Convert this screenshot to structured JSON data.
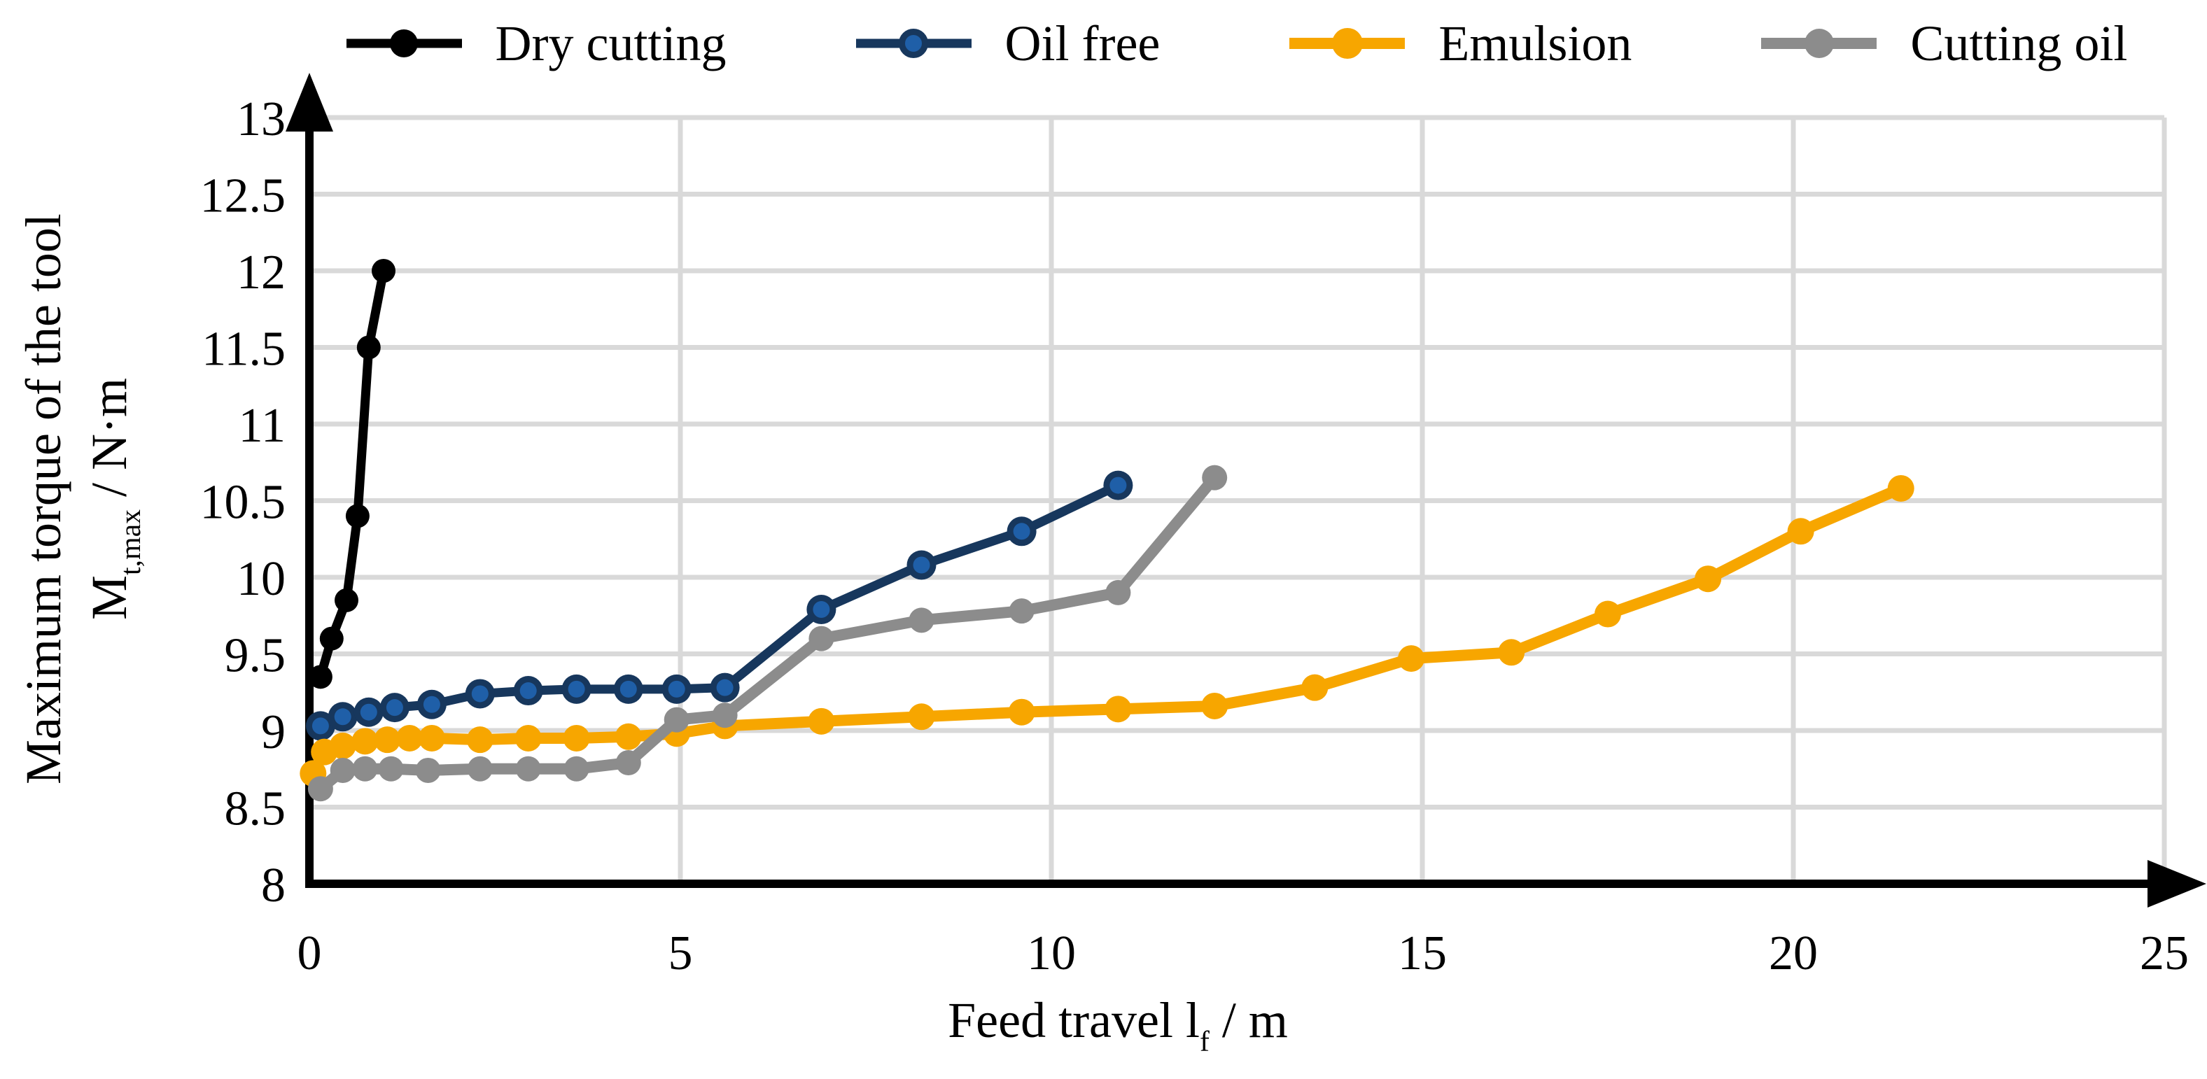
{
  "chart_data": {
    "type": "line",
    "title": "",
    "xlabel": {
      "pre": "Feed travel l",
      "sub": "f",
      "post": " / m"
    },
    "ylabel": {
      "line1": "Maximum torque of the tool",
      "m": "M",
      "sub": "t,max",
      "post": " / N·m"
    },
    "xlim": [
      0,
      25
    ],
    "ylim": [
      8,
      13
    ],
    "x_ticks": [
      "0",
      "5",
      "10",
      "15",
      "20",
      "25"
    ],
    "y_ticks": [
      "8",
      "8.5",
      "9",
      "9.5",
      "10",
      "10.5",
      "11",
      "11.5",
      "12",
      "12.5",
      "13"
    ],
    "grid": true,
    "legend_position": "top",
    "grid_color": "#D9D9D9",
    "axis_color": "#000000",
    "series": [
      {
        "name": "Dry cutting",
        "color": "#000000",
        "line_width": 13,
        "marker": {
          "type": "circle",
          "r": 17,
          "fill": "#000000"
        },
        "points": [
          [
            0.15,
            9.35
          ],
          [
            0.3,
            9.6
          ],
          [
            0.5,
            9.85
          ],
          [
            0.65,
            10.4
          ],
          [
            0.8,
            11.5
          ],
          [
            1.0,
            12.0
          ]
        ]
      },
      {
        "name": "Oil free",
        "color": "#17375D",
        "line_width": 13,
        "marker": {
          "type": "ring",
          "r": 21,
          "fill": "#17375D",
          "inner_r": 12,
          "inner_fill": "#1F5FA8"
        },
        "points": [
          [
            0.15,
            9.03
          ],
          [
            0.45,
            9.09
          ],
          [
            0.8,
            9.12
          ],
          [
            1.15,
            9.15
          ],
          [
            1.65,
            9.17
          ],
          [
            2.3,
            9.24
          ],
          [
            2.95,
            9.26
          ],
          [
            3.6,
            9.27
          ],
          [
            4.3,
            9.27
          ],
          [
            4.95,
            9.27
          ],
          [
            5.6,
            9.28
          ],
          [
            6.9,
            9.79
          ],
          [
            8.25,
            10.08
          ],
          [
            9.6,
            10.3
          ],
          [
            10.9,
            10.6
          ]
        ]
      },
      {
        "name": "Emulsion",
        "color": "#F7A600",
        "line_width": 16,
        "marker": {
          "type": "circle",
          "r": 19,
          "fill": "#F7A600"
        },
        "points": [
          [
            0.05,
            8.72
          ],
          [
            0.2,
            8.86
          ],
          [
            0.45,
            8.9
          ],
          [
            0.75,
            8.93
          ],
          [
            1.05,
            8.94
          ],
          [
            1.35,
            8.95
          ],
          [
            1.65,
            8.95
          ],
          [
            2.3,
            8.94
          ],
          [
            2.95,
            8.95
          ],
          [
            3.6,
            8.95
          ],
          [
            4.3,
            8.96
          ],
          [
            4.95,
            8.98
          ],
          [
            5.6,
            9.03
          ],
          [
            6.9,
            9.06
          ],
          [
            8.25,
            9.09
          ],
          [
            9.6,
            9.12
          ],
          [
            10.9,
            9.14
          ],
          [
            12.2,
            9.16
          ],
          [
            13.55,
            9.28
          ],
          [
            14.85,
            9.47
          ],
          [
            16.2,
            9.51
          ],
          [
            17.5,
            9.76
          ],
          [
            18.85,
            9.99
          ],
          [
            20.1,
            10.3
          ],
          [
            21.45,
            10.58
          ]
        ]
      },
      {
        "name": "Cutting oil",
        "color": "#8C8C8C",
        "line_width": 16,
        "marker": {
          "type": "circle",
          "r": 18,
          "fill": "#8C8C8C"
        },
        "points": [
          [
            0.15,
            8.62
          ],
          [
            0.45,
            8.74
          ],
          [
            0.75,
            8.75
          ],
          [
            1.1,
            8.75
          ],
          [
            1.6,
            8.74
          ],
          [
            2.3,
            8.75
          ],
          [
            2.95,
            8.75
          ],
          [
            3.6,
            8.75
          ],
          [
            4.3,
            8.79
          ],
          [
            4.95,
            9.07
          ],
          [
            5.6,
            9.1
          ],
          [
            6.9,
            9.6
          ],
          [
            8.25,
            9.72
          ],
          [
            9.6,
            9.78
          ],
          [
            10.9,
            9.9
          ],
          [
            12.2,
            10.65
          ]
        ]
      }
    ]
  }
}
